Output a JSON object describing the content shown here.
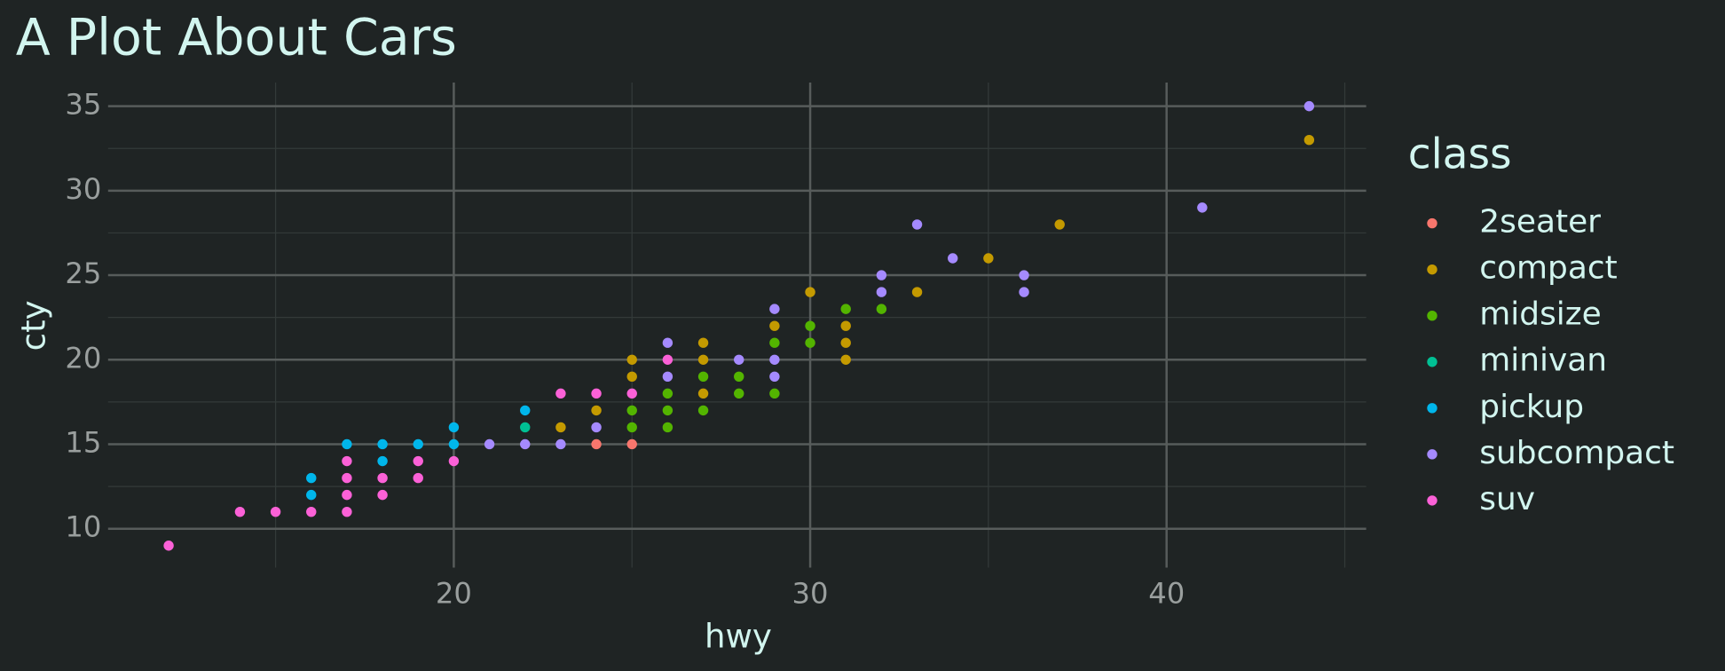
{
  "chart_data": {
    "type": "scatter",
    "title": "A Plot About Cars",
    "x_label": "hwy",
    "y_label": "cty",
    "legend_title": "class",
    "legend_position": "right",
    "grid": true,
    "xlim": [
      10.3,
      45.6
    ],
    "ylim": [
      7.7,
      36.4
    ],
    "xticks": [
      20,
      30,
      40
    ],
    "yticks": [
      10,
      15,
      20,
      25,
      30,
      35
    ],
    "xminorticks": [
      15,
      25,
      35,
      45
    ],
    "yminorticks": [
      12.5,
      17.5,
      22.5,
      27.5,
      32.5
    ],
    "series": [
      {
        "name": "2seater",
        "color": "#F8766D",
        "x": [
          24,
          25
        ],
        "values": [
          15,
          15
        ]
      },
      {
        "name": "compact",
        "color": "#C49A00",
        "x": [
          23,
          24,
          25,
          25,
          27,
          27,
          27,
          29,
          30,
          31,
          31,
          31,
          33,
          35,
          37,
          44
        ],
        "values": [
          16,
          17,
          19,
          20,
          21,
          20,
          18,
          22,
          24,
          22,
          21,
          20,
          24,
          26,
          28,
          33
        ]
      },
      {
        "name": "midsize",
        "color": "#53B400",
        "x": [
          25,
          25,
          26,
          26,
          26,
          27,
          27,
          28,
          28,
          29,
          29,
          30,
          30,
          31,
          32
        ],
        "values": [
          17,
          16,
          18,
          17,
          16,
          19,
          17,
          19,
          18,
          21,
          18,
          22,
          21,
          23,
          23
        ]
      },
      {
        "name": "minivan",
        "color": "#00C094",
        "x": [
          22
        ],
        "values": [
          16
        ]
      },
      {
        "name": "pickup",
        "color": "#00B6EB",
        "x": [
          16,
          16,
          17,
          18,
          18,
          19,
          20,
          20,
          22
        ],
        "values": [
          13,
          12,
          15,
          15,
          14,
          15,
          16,
          15,
          17
        ]
      },
      {
        "name": "subcompact",
        "color": "#A58AFF",
        "x": [
          21,
          22,
          23,
          24,
          26,
          26,
          28,
          29,
          29,
          29,
          32,
          32,
          33,
          34,
          36,
          36,
          41,
          44
        ],
        "values": [
          15,
          15,
          15,
          16,
          21,
          19,
          20,
          23,
          20,
          19,
          25,
          24,
          28,
          26,
          25,
          24,
          29,
          35
        ]
      },
      {
        "name": "suv",
        "color": "#FB61D7",
        "x": [
          12,
          14,
          15,
          16,
          17,
          17,
          17,
          17,
          18,
          18,
          19,
          19,
          20,
          23,
          24,
          25,
          26
        ],
        "values": [
          9,
          11,
          11,
          11,
          14,
          13,
          12,
          11,
          13,
          12,
          14,
          13,
          14,
          18,
          18,
          18,
          20
        ]
      }
    ]
  }
}
